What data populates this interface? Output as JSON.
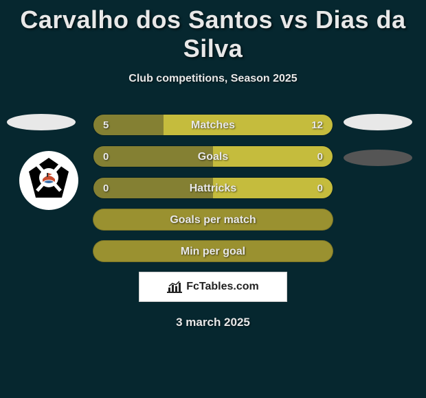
{
  "title": "Carvalho dos Santos vs Dias da Silva",
  "subtitle": "Club competitions, Season 2025",
  "date": "3 march 2025",
  "branding_text": "FcTables.com",
  "colors": {
    "background": "#06272f",
    "bar_left": "#848033",
    "bar_right": "#c5bc3d",
    "bar_full": "#9a9130",
    "text": "#e8e8e8",
    "badge_white": "#e8e8e8",
    "badge_grey": "#555555"
  },
  "crest": {
    "bg": "#ffffff",
    "inner": "#000000"
  },
  "stats": [
    {
      "label": "Matches",
      "left_val": "5",
      "right_val": "12",
      "left_pct": 29.4,
      "right_pct": 70.6,
      "show_vals": true
    },
    {
      "label": "Goals",
      "left_val": "0",
      "right_val": "0",
      "left_pct": 50,
      "right_pct": 50,
      "show_vals": true
    },
    {
      "label": "Hattricks",
      "left_val": "0",
      "right_val": "0",
      "left_pct": 50,
      "right_pct": 50,
      "show_vals": true
    },
    {
      "label": "Goals per match",
      "left_val": "",
      "right_val": "",
      "left_pct": 100,
      "right_pct": 0,
      "show_vals": false
    },
    {
      "label": "Min per goal",
      "left_val": "",
      "right_val": "",
      "left_pct": 100,
      "right_pct": 0,
      "show_vals": false
    }
  ]
}
